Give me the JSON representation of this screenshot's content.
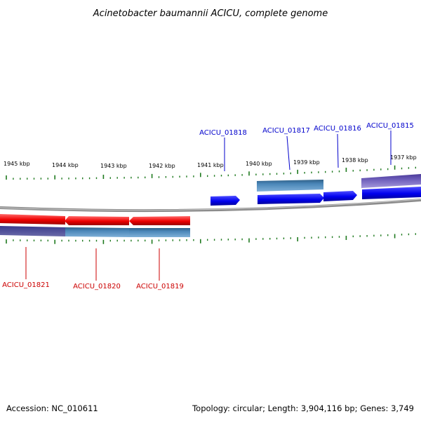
{
  "title": "Acinetobacter baumannii ACICU, complete genome",
  "accession_text": "Accession: NC_010611",
  "summary_text": "Topology: circular; Length: 3,904,116 bp; Genes: 3,749",
  "ruler": {
    "unit": "kbp",
    "labels": [
      "1945 kbp",
      "1944 kbp",
      "1943 kbp",
      "1942 kbp",
      "1941 kbp",
      "1940 kbp",
      "1939 kbp",
      "1938 kbp",
      "1937 kbp"
    ]
  },
  "genes": [
    {
      "label": "ACICU_01818",
      "strand": "forward"
    },
    {
      "label": "ACICU_01817",
      "strand": "forward"
    },
    {
      "label": "ACICU_01816",
      "strand": "forward"
    },
    {
      "label": "ACICU_01815",
      "strand": "forward"
    },
    {
      "label": "ACICU_01821",
      "strand": "reverse"
    },
    {
      "label": "ACICU_01820",
      "strand": "reverse"
    },
    {
      "label": "ACICU_01819",
      "strand": "reverse"
    }
  ],
  "colors": {
    "forward_gene": "#0000ee",
    "reverse_gene": "#ee0000",
    "forward_label": "#0000cc",
    "reverse_label": "#cc0000",
    "tick": "#1f7a1f",
    "backbone": "#8c8c8c",
    "cog_teal": "#4a86b8",
    "cog_purple": "#6a5ab8",
    "cog_navy": "#3a3a8c"
  }
}
